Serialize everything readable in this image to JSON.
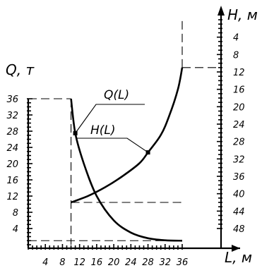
{
  "chart_data": {
    "type": "line",
    "x_axis": {
      "label": "L, м",
      "range": [
        0,
        36
      ],
      "ticks": [
        4,
        8,
        12,
        16,
        20,
        24,
        28,
        32,
        36
      ],
      "tick_labels": [
        "4",
        "8",
        "12",
        "16",
        "20",
        "24",
        "28",
        "32",
        "36"
      ]
    },
    "left_axis": {
      "label": "Q, т",
      "range": [
        0,
        36
      ],
      "ticks": [
        4,
        8,
        12,
        16,
        20,
        24,
        28,
        32,
        36
      ],
      "tick_labels": [
        "4",
        "8",
        "12",
        "16",
        "20",
        "24",
        "28",
        "32",
        "36"
      ]
    },
    "right_axis": {
      "label": "H, м",
      "range": [
        0,
        48
      ],
      "direction": "increasing-downward",
      "ticks": [
        4,
        8,
        12,
        16,
        20,
        24,
        28,
        32,
        36,
        40,
        44,
        48
      ],
      "tick_labels": [
        "4",
        "8",
        "12",
        "16",
        "20",
        "24",
        "28",
        "32",
        "36",
        "40",
        "44",
        "48"
      ]
    },
    "series": [
      {
        "name": "Q(L)",
        "axis": "left",
        "points": [
          [
            10,
            36
          ],
          [
            11,
            27.5
          ],
          [
            13,
            20
          ],
          [
            16,
            12
          ],
          [
            20,
            6
          ],
          [
            24,
            3
          ],
          [
            28,
            1.6
          ],
          [
            32,
            1.1
          ],
          [
            36,
            1
          ]
        ]
      },
      {
        "name": "H(L)",
        "axis": "right",
        "points": [
          [
            10,
            42
          ],
          [
            14,
            40.5
          ],
          [
            18,
            38.5
          ],
          [
            22,
            36
          ],
          [
            26,
            33
          ],
          [
            28,
            30.5
          ],
          [
            31,
            26.5
          ],
          [
            33,
            22
          ],
          [
            35,
            16
          ],
          [
            36,
            11
          ]
        ]
      }
    ],
    "guides": [
      {
        "axis": "left",
        "from": [
          0,
          36
        ],
        "to": [
          10,
          36
        ]
      },
      {
        "axis": "left",
        "from": [
          10,
          36
        ],
        "to": [
          10,
          0
        ]
      },
      {
        "axis": "left",
        "from": [
          0,
          1
        ],
        "to": [
          36,
          1
        ]
      },
      {
        "axis": "right",
        "from": [
          10,
          42
        ],
        "to": [
          36,
          42
        ]
      },
      {
        "axis": "right",
        "from": [
          36,
          11
        ],
        "to": [
          36,
          0
        ]
      },
      {
        "axis": "right",
        "from": [
          36,
          11
        ],
        "to": [
          36,
          11
        ]
      }
    ],
    "markers": [
      {
        "series": "Q(L)",
        "point": [
          11,
          27.5
        ]
      },
      {
        "series": "H(L)",
        "point": [
          28,
          30.5
        ]
      }
    ],
    "grid": false
  }
}
